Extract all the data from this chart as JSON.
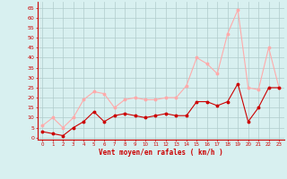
{
  "x": [
    0,
    1,
    2,
    3,
    4,
    5,
    6,
    7,
    8,
    9,
    10,
    11,
    12,
    13,
    14,
    15,
    16,
    17,
    18,
    19,
    20,
    21,
    22,
    23
  ],
  "wind_avg": [
    3,
    2,
    1,
    5,
    8,
    13,
    8,
    11,
    12,
    11,
    10,
    11,
    12,
    11,
    11,
    18,
    18,
    16,
    18,
    27,
    8,
    15,
    25,
    25
  ],
  "wind_gust": [
    6,
    10,
    5,
    10,
    19,
    23,
    22,
    15,
    19,
    20,
    19,
    19,
    20,
    20,
    26,
    40,
    37,
    32,
    52,
    64,
    25,
    24,
    45,
    25
  ],
  "avg_color": "#cc0000",
  "gust_color": "#ffaaaa",
  "bg_color": "#d8f0f0",
  "grid_color": "#b0cccc",
  "xlabel": "Vent moyen/en rafales ( km/h )",
  "xlabel_color": "#cc0000",
  "ylabel_ticks": [
    0,
    5,
    10,
    15,
    20,
    25,
    30,
    35,
    40,
    45,
    50,
    55,
    60,
    65
  ],
  "ylim": [
    -1,
    68
  ],
  "xlim": [
    -0.5,
    23.5
  ],
  "tick_color": "#cc0000",
  "spine_color": "#cc0000"
}
